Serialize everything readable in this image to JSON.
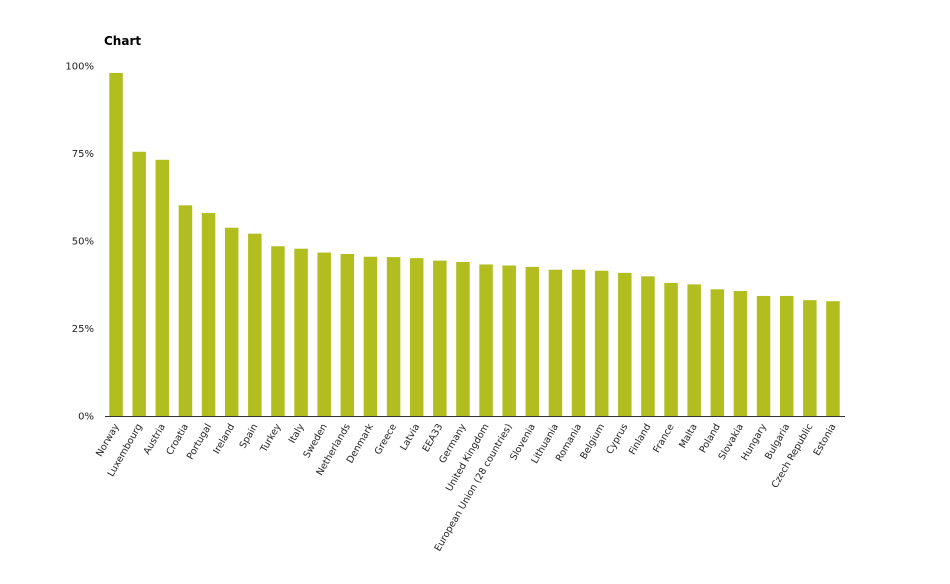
{
  "chart_data": {
    "type": "bar",
    "title": "Chart",
    "xlabel": "",
    "ylabel": "",
    "ylim": [
      0,
      100
    ],
    "yticks": [
      0,
      25,
      50,
      75,
      100
    ],
    "ytick_labels": [
      "0%",
      "25%",
      "50%",
      "75%",
      "100%"
    ],
    "grid": false,
    "bar_color": "#b2be20",
    "categories": [
      "Norway",
      "Luxembourg",
      "Austria",
      "Croatia",
      "Portugal",
      "Ireland",
      "Spain",
      "Turkey",
      "Italy",
      "Sweden",
      "Netherlands",
      "Denmark",
      "Greece",
      "Latvia",
      "EEA33",
      "Germany",
      "United Kingdom",
      "European Union (28 countries)",
      "Slovenia",
      "Lithuania",
      "Romania",
      "Belgium",
      "Cyprus",
      "Finland",
      "France",
      "Malta",
      "Poland",
      "Slovakia",
      "Hungary",
      "Bulgaria",
      "Czech Republic",
      "Estonia"
    ],
    "values": [
      98,
      75.5,
      73.2,
      60.2,
      58,
      53.8,
      52.1,
      48.5,
      47.8,
      46.7,
      46.3,
      45.5,
      45.4,
      45.1,
      44.4,
      44,
      43.3,
      43,
      42.6,
      41.8,
      41.8,
      41.5,
      40.9,
      39.9,
      38,
      37.6,
      36.2,
      35.7,
      34.3,
      34.3,
      33.1,
      32.8
    ]
  }
}
